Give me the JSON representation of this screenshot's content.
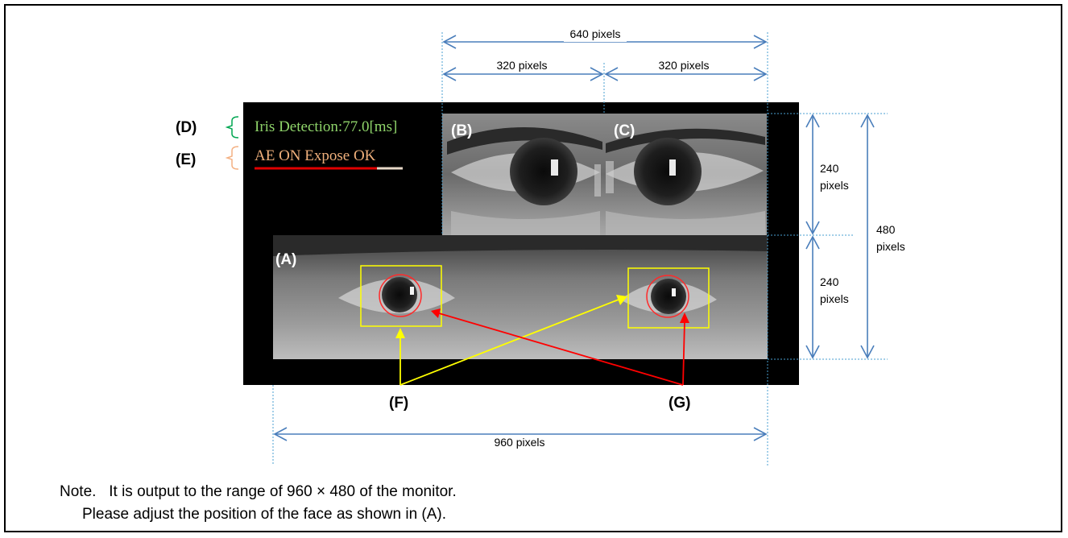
{
  "panels": {
    "a_label": "(A)",
    "b_label": "(B)",
    "c_label": "(C)"
  },
  "overlay": {
    "iris_detection": "Iris Detection:77.0[ms]",
    "ae_status": "AE ON Expose OK"
  },
  "callouts": {
    "d": "(D)",
    "e": "(E)",
    "f": "(F)",
    "g": "(G)"
  },
  "dimensions": {
    "top_width": "640 pixels",
    "half_width_left": "320 pixels",
    "half_width_right": "320 pixels",
    "bottom_width": "960 pixels",
    "height_upper_line1": "240",
    "height_upper_line2": "pixels",
    "height_lower_line1": "240",
    "height_lower_line2": "pixels",
    "height_total_line1": "480",
    "height_total_line2": "pixels"
  },
  "note": {
    "line1": "Note.   It is output to the range of 960 × 480 of the monitor.",
    "line2": "Please adjust the position of the face as shown in (A)."
  },
  "colors": {
    "dimension": "#4a7ebb",
    "detection_text": "#8fd46a",
    "ae_text": "#f0b07c",
    "yellow_box": "#ffff00",
    "red_marker": "#ff0000",
    "callout_d_bracket": "#00a651",
    "callout_e_bracket": "#f4b183"
  }
}
